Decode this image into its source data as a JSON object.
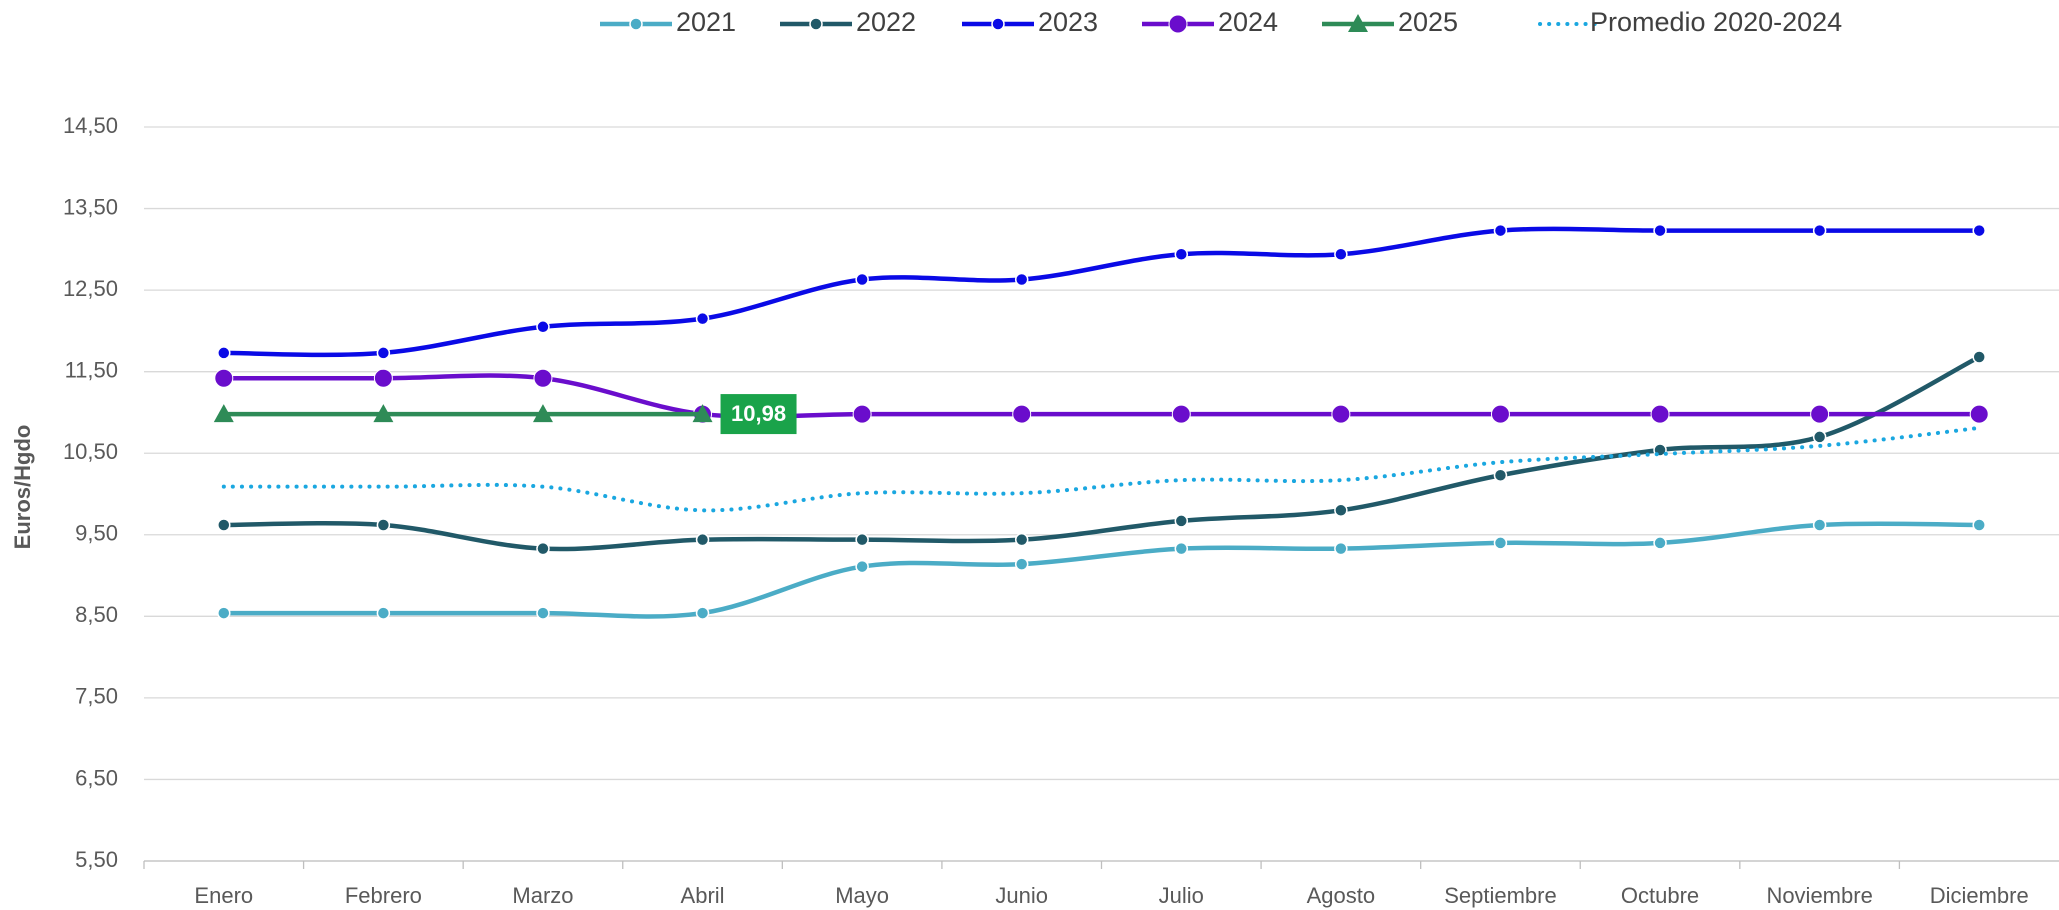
{
  "chart_data": {
    "type": "line",
    "y_label": "Euros/Hgdo",
    "categories": [
      "Enero",
      "Febrero",
      "Marzo",
      "Abril",
      "Mayo",
      "Junio",
      "Julio",
      "Agosto",
      "Septiembre",
      "Octubre",
      "Noviembre",
      "Diciembre"
    ],
    "series": [
      {
        "name": "2021",
        "color": "#4bacc6",
        "marker": "circle",
        "line_style": "solid",
        "values": [
          8.54,
          8.54,
          8.54,
          8.54,
          9.11,
          9.14,
          9.33,
          9.33,
          9.4,
          9.4,
          9.62,
          9.62
        ]
      },
      {
        "name": "2022",
        "color": "#215968",
        "marker": "circle",
        "line_style": "solid",
        "values": [
          9.62,
          9.62,
          9.33,
          9.44,
          9.44,
          9.44,
          9.67,
          9.8,
          10.23,
          10.54,
          10.7,
          11.68
        ]
      },
      {
        "name": "2023",
        "color": "#0a0ae6",
        "marker": "circle",
        "line_style": "solid",
        "values": [
          11.73,
          11.73,
          12.05,
          12.15,
          12.63,
          12.63,
          12.94,
          12.94,
          13.23,
          13.23,
          13.23,
          13.23
        ]
      },
      {
        "name": "2024",
        "color": "#6a0dcc",
        "marker": "large-circle",
        "line_style": "solid",
        "values": [
          11.42,
          11.42,
          11.42,
          10.98,
          10.98,
          10.98,
          10.98,
          10.98,
          10.98,
          10.98,
          10.98,
          10.98
        ]
      },
      {
        "name": "2025",
        "color": "#2e8b57",
        "marker": "triangle",
        "line_style": "solid",
        "values": [
          10.98,
          10.98,
          10.98,
          10.98,
          null,
          null,
          null,
          null,
          null,
          null,
          null,
          null
        ],
        "value_labels": [
          null,
          null,
          null,
          "10,98",
          null,
          null,
          null,
          null,
          null,
          null,
          null,
          null
        ],
        "label_color": "#1aa34a"
      },
      {
        "name": "Promedio 2020-2024",
        "color": "#1aa7e0",
        "marker": "none",
        "line_style": "dotted",
        "values": [
          10.09,
          10.09,
          10.09,
          9.8,
          10.01,
          10.01,
          10.17,
          10.17,
          10.39,
          10.49,
          10.59,
          10.81
        ]
      }
    ],
    "ylim": [
      5.5,
      14.5
    ],
    "yticks": [
      {
        "value": 5.5,
        "label": "5,50"
      },
      {
        "value": 6.5,
        "label": "6,50"
      },
      {
        "value": 7.5,
        "label": "7,50"
      },
      {
        "value": 8.5,
        "label": "8,50"
      },
      {
        "value": 9.5,
        "label": "9,50"
      },
      {
        "value": 10.5,
        "label": "10,50"
      },
      {
        "value": 11.5,
        "label": "11,50"
      },
      {
        "value": 12.5,
        "label": "12,50"
      },
      {
        "value": 13.5,
        "label": "13,50"
      },
      {
        "value": 14.5,
        "label": "14,50"
      }
    ],
    "grid": true,
    "legend": "top"
  }
}
